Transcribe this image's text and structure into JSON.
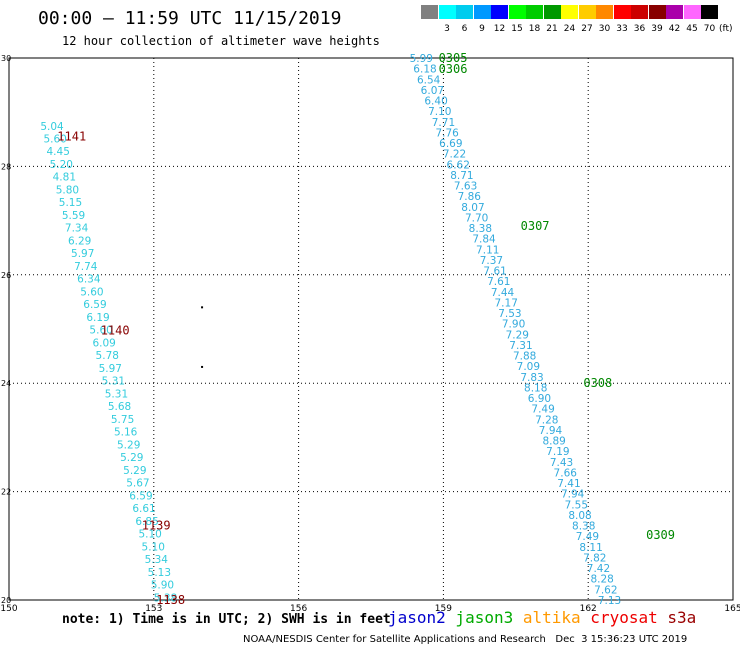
{
  "header": {
    "title": "00:00 – 11:59 UTC 11/15/2019",
    "subtitle": "12 hour collection of altimeter wave heights"
  },
  "legend_scale": {
    "unit": "(ft)",
    "bins": [
      {
        "label": "",
        "color": "#808080"
      },
      {
        "label": "3",
        "color": "#00ffff"
      },
      {
        "label": "6",
        "color": "#00ccee"
      },
      {
        "label": "9",
        "color": "#0099ff"
      },
      {
        "label": "12",
        "color": "#0000ff"
      },
      {
        "label": "15",
        "color": "#00ff00"
      },
      {
        "label": "18",
        "color": "#00cc00"
      },
      {
        "label": "21",
        "color": "#009900"
      },
      {
        "label": "24",
        "color": "#ffff00"
      },
      {
        "label": "27",
        "color": "#ffcc00"
      },
      {
        "label": "30",
        "color": "#ff8800"
      },
      {
        "label": "33",
        "color": "#ff0000"
      },
      {
        "label": "36",
        "color": "#cc0000"
      },
      {
        "label": "39",
        "color": "#880000"
      },
      {
        "label": "42",
        "color": "#aa00aa"
      },
      {
        "label": "45",
        "color": "#ff66ff"
      },
      {
        "label": "70",
        "color": "#000000"
      }
    ]
  },
  "map": {
    "lon_range": [
      150,
      165
    ],
    "lat_range": [
      20,
      30
    ],
    "x_ticks": [
      "150",
      "153",
      "156",
      "159",
      "162",
      "165"
    ],
    "y_ticks": [
      "20",
      "22",
      "24",
      "26",
      "28",
      "30"
    ],
    "islands": [
      {
        "lon": 154.0,
        "lat": 25.4
      },
      {
        "lon": 154.0,
        "lat": 24.3
      }
    ],
    "tracks": [
      {
        "color": "#33ccdd",
        "start": {
          "lon": 150.65,
          "lat": 28.75
        },
        "end": {
          "lon": 153.0,
          "lat": 20.05
        },
        "values": [
          "5.04",
          "5.60",
          "4.45",
          "5.20",
          "4.81",
          "5.80",
          "5.15",
          "5.59",
          "7.34",
          "6.29",
          "5.97",
          "7.74",
          "6.34",
          "5.60",
          "6.59",
          "6.19",
          "5.60",
          "6.09",
          "5.78",
          "5.97",
          "5.31",
          "5.31",
          "5.68",
          "5.75",
          "5.16",
          "5.29",
          "5.29",
          "5.29",
          "5.67",
          "6.59",
          "6.61",
          "6.85",
          "5.10",
          "5.10",
          "5.34",
          "5.13",
          "5.90",
          "5.38"
        ]
      },
      {
        "color": "#33aadd",
        "start": {
          "lon": 158.3,
          "lat": 30.0
        },
        "end": {
          "lon": 162.2,
          "lat": 20.0
        },
        "values": [
          "5.99",
          "6.18",
          "6.54",
          "6.07",
          "6.40",
          "7.10",
          "7.71",
          "7.76",
          "6.69",
          "7.22",
          "6.62",
          "8.71",
          "7.63",
          "7.86",
          "8.07",
          "7.70",
          "8.38",
          "7.84",
          "7.11",
          "7.37",
          "7.61",
          "7.61",
          "7.44",
          "7.17",
          "7.53",
          "7.90",
          "7.29",
          "7.31",
          "7.88",
          "7.09",
          "7.83",
          "8.18",
          "6.90",
          "7.49",
          "7.28",
          "7.94",
          "8.89",
          "7.19",
          "7.43",
          "7.66",
          "7.41",
          "7.94",
          "7.55",
          "8.08",
          "8.38",
          "7.49",
          "8.11",
          "7.82",
          "7.42",
          "8.28",
          "7.62",
          "7.13"
        ]
      }
    ],
    "time_labels": [
      {
        "text": "1141",
        "lon": 151.0,
        "lat": 28.55,
        "color": "#880000"
      },
      {
        "text": "1140",
        "lon": 151.9,
        "lat": 24.97,
        "color": "#880000"
      },
      {
        "text": "1139",
        "lon": 152.75,
        "lat": 21.37,
        "color": "#880000"
      },
      {
        "text": "1138",
        "lon": 153.05,
        "lat": 20.0,
        "color": "#880000"
      },
      {
        "text": "0305",
        "lon": 158.9,
        "lat": 30.0,
        "color": "#008800"
      },
      {
        "text": "0306",
        "lon": 158.9,
        "lat": 29.8,
        "color": "#008800"
      },
      {
        "text": "0307",
        "lon": 160.6,
        "lat": 26.9,
        "color": "#008800"
      },
      {
        "text": "0308",
        "lon": 161.9,
        "lat": 24.0,
        "color": "#008800"
      },
      {
        "text": "0309",
        "lon": 163.2,
        "lat": 21.2,
        "color": "#008800"
      }
    ]
  },
  "footer": {
    "note": "note: 1) Time is in UTC; 2) SWH is in feet",
    "satellites": [
      {
        "name": "jason2",
        "color": "#0000cc"
      },
      {
        "name": "jason3",
        "color": "#00aa00"
      },
      {
        "name": "altika",
        "color": "#ff9900"
      },
      {
        "name": "cryosat",
        "color": "#ee0000"
      },
      {
        "name": "s3a",
        "color": "#990000"
      }
    ],
    "credit": "NOAA/NESDIS Center for Satellite Applications and Research   Dec  3 15:36:23 UTC 2019"
  }
}
